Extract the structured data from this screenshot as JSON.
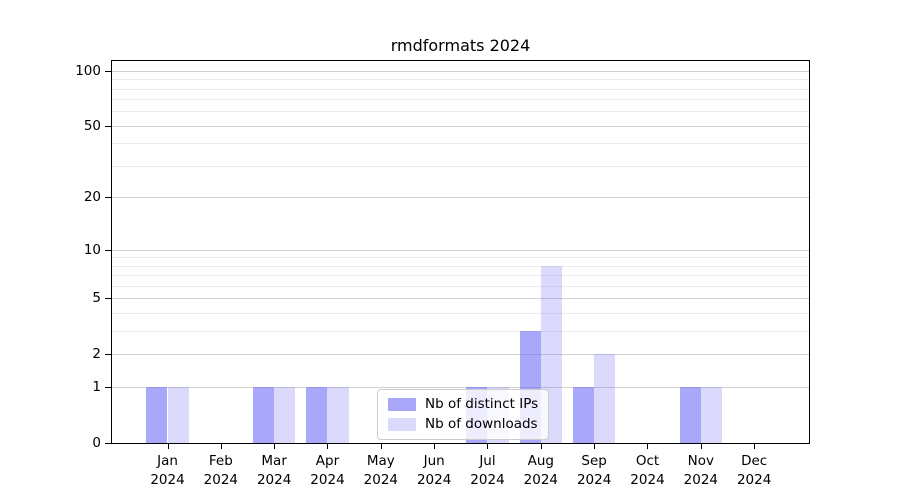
{
  "title": "rmdformats 2024",
  "colors": {
    "distinct_ips": "rgba(111,109,247,0.60)",
    "downloads": "rgba(111,109,247,0.25)",
    "grid_major": "#d2d2d2",
    "grid_minor": "#ececec",
    "axis": "#000000",
    "legend_border": "#cccccc",
    "background": "#ffffff"
  },
  "legend": {
    "items": [
      {
        "label": "Nb of distinct IPs",
        "color_key": "distinct_ips",
        "slug": "distinct-ips"
      },
      {
        "label": "Nb of downloads",
        "color_key": "downloads",
        "slug": "downloads"
      }
    ]
  },
  "chart_data": {
    "type": "bar",
    "title": "rmdformats 2024",
    "scale": "log1p",
    "categories": [
      "Jan 2024",
      "Feb 2024",
      "Mar 2024",
      "Apr 2024",
      "May 2024",
      "Jun 2024",
      "Jul 2024",
      "Aug 2024",
      "Sep 2024",
      "Oct 2024",
      "Nov 2024",
      "Dec 2024"
    ],
    "series": [
      {
        "name": "Nb of distinct IPs",
        "slug": "distinct-ips",
        "color_key": "distinct_ips",
        "values": [
          1,
          0,
          1,
          1,
          0,
          0,
          1,
          3,
          1,
          0,
          1,
          0
        ]
      },
      {
        "name": "Nb of downloads",
        "slug": "downloads",
        "color_key": "downloads",
        "values": [
          1,
          0,
          1,
          1,
          0,
          0,
          1,
          8,
          2,
          0,
          1,
          0
        ]
      }
    ],
    "y_ticks": [
      0,
      1,
      2,
      5,
      10,
      20,
      50,
      100
    ],
    "y_minor_gridlines": [
      3,
      4,
      6,
      7,
      8,
      9,
      30,
      40,
      60,
      70,
      80,
      90
    ],
    "ylim": [
      0,
      113
    ],
    "xlabel": "",
    "ylabel": "",
    "grid": "horizontal",
    "legend_position": "lower-center"
  }
}
